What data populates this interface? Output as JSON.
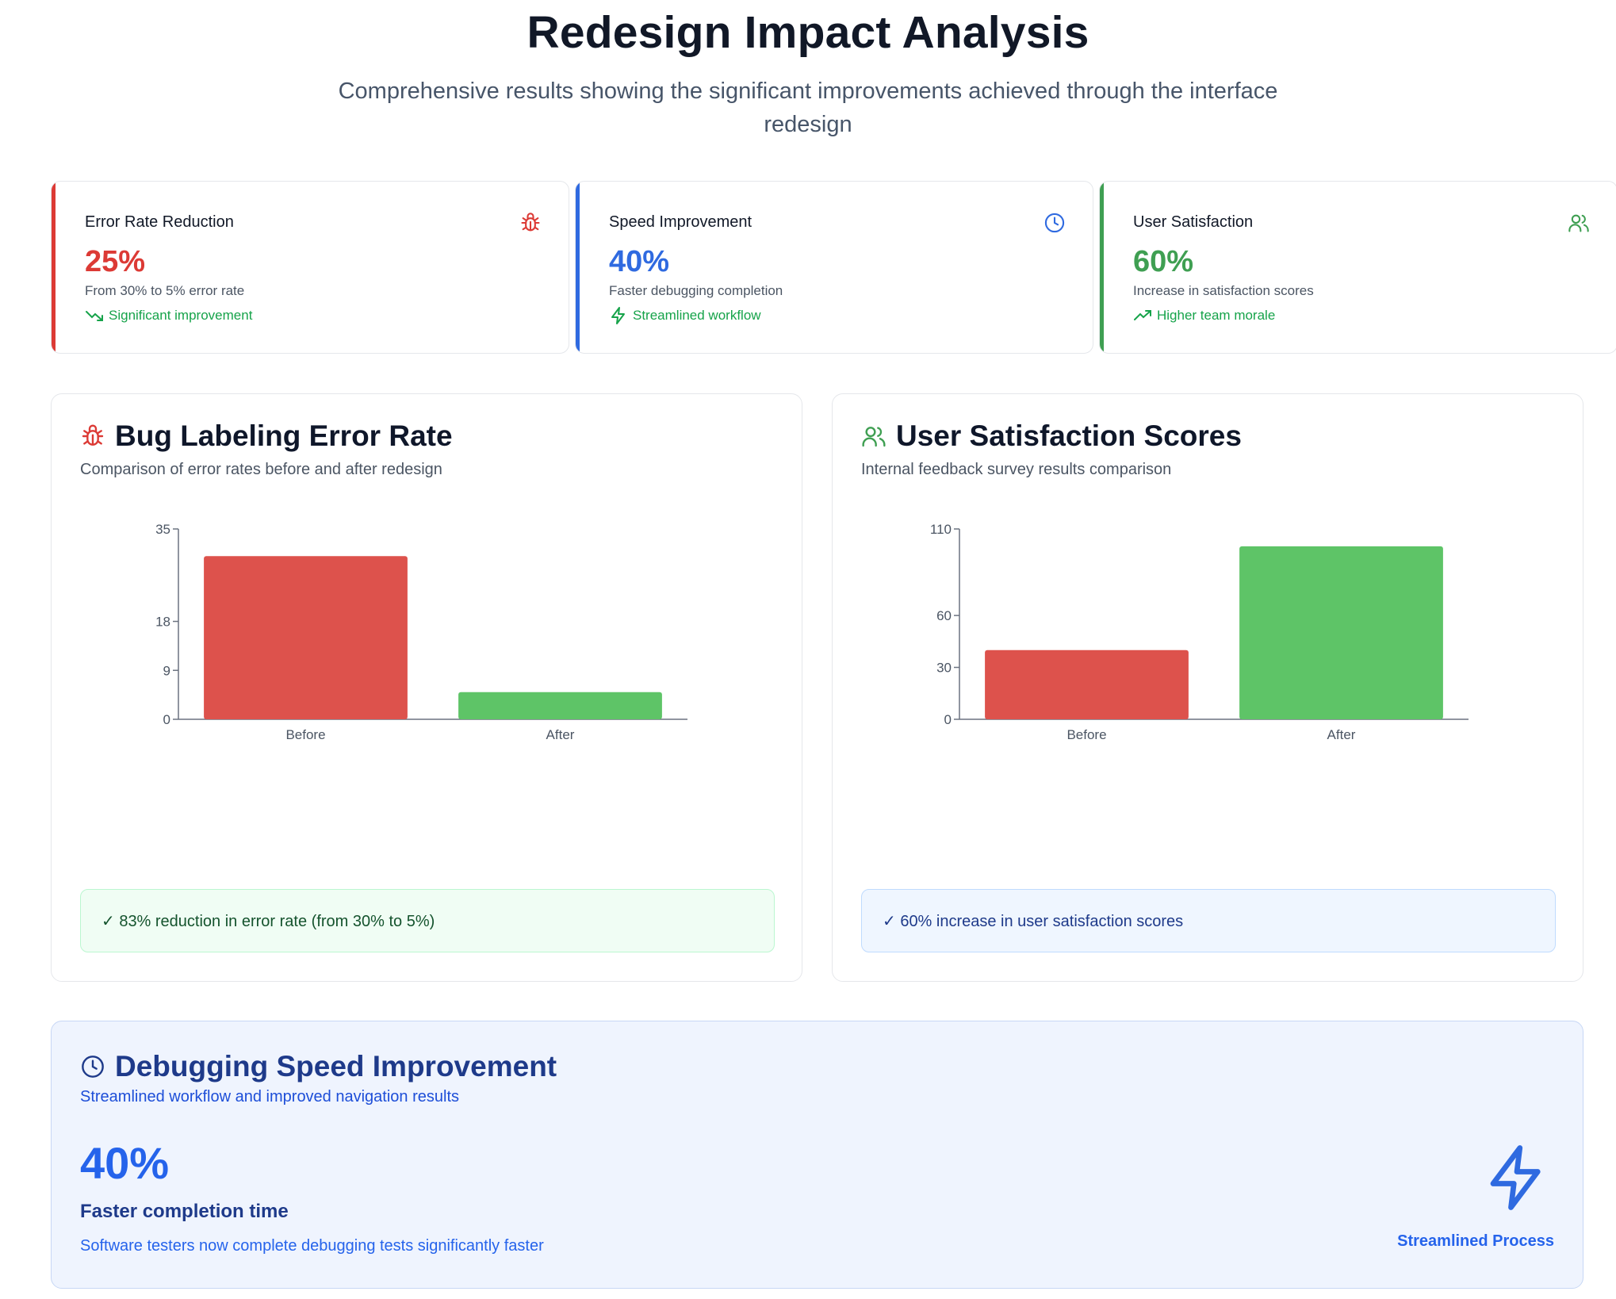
{
  "header": {
    "title": "Redesign Impact Analysis",
    "subtitle": "Comprehensive results showing the significant improvements achieved through the interface redesign"
  },
  "stats": [
    {
      "label": "Error Rate Reduction",
      "value": "25%",
      "description": "From 30% to 5% error rate",
      "trend": "Significant improvement",
      "color": "#dc3a35",
      "icon": "bug-icon",
      "trend_icon": "trending-down-icon"
    },
    {
      "label": "Speed Improvement",
      "value": "40%",
      "description": "Faster debugging completion",
      "trend": "Streamlined workflow",
      "color": "#2f6ae0",
      "icon": "clock-icon",
      "trend_icon": "lightning-icon"
    },
    {
      "label": "User Satisfaction",
      "value": "60%",
      "description": "Increase in satisfaction scores",
      "trend": "Higher team morale",
      "color": "#3f9f52",
      "icon": "users-icon",
      "trend_icon": "trending-up-icon"
    }
  ],
  "error_chart": {
    "title": "Bug Labeling Error Rate",
    "subtitle": "Comparison of error rates before and after redesign",
    "note": "✓ 83% reduction in error rate (from 30% to 5%)"
  },
  "satisfaction_chart": {
    "title": "User Satisfaction Scores",
    "subtitle": "Internal feedback survey results comparison",
    "note": "✓ 60% increase in user satisfaction scores"
  },
  "chart_data": [
    {
      "type": "bar",
      "categories": [
        "Before",
        "After"
      ],
      "values": [
        30,
        5
      ],
      "colors": [
        "#dd524c",
        "#5ec467"
      ],
      "yticks": [
        0,
        9,
        18,
        35
      ],
      "ylim": [
        0,
        35
      ]
    },
    {
      "type": "bar",
      "categories": [
        "Before",
        "After"
      ],
      "values": [
        40,
        100
      ],
      "colors": [
        "#dd524c",
        "#5ec467"
      ],
      "yticks": [
        0,
        30,
        60,
        110
      ],
      "ylim": [
        0,
        110
      ]
    }
  ],
  "speed": {
    "title": "Debugging Speed Improvement",
    "subtitle": "Streamlined workflow and improved navigation results",
    "value": "40%",
    "value_label": "Faster completion time",
    "detail": "Software testers now complete debugging tests significantly faster",
    "process_label": "Streamlined Process"
  }
}
